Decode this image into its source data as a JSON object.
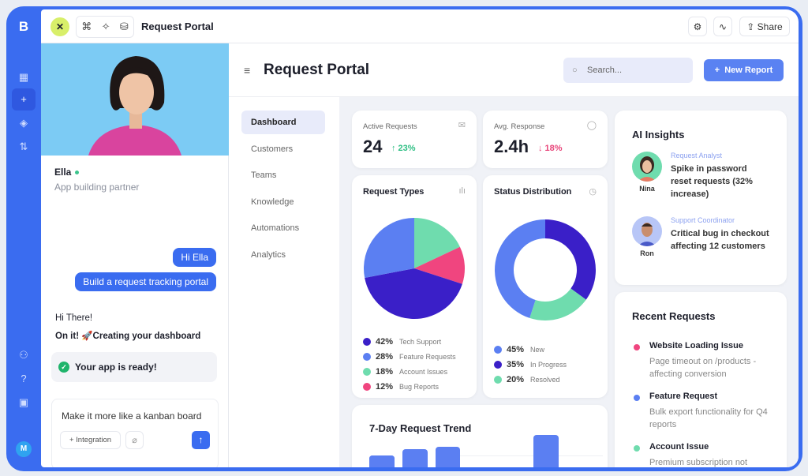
{
  "app": {
    "title": "Request Portal",
    "share_label": "Share",
    "user_initial": "M"
  },
  "chat": {
    "agent_name": "Ella",
    "agent_role": "App building partner",
    "user_messages": [
      "Hi Ella",
      "Build a request tracking portal"
    ],
    "agent_greeting": "Hi There!",
    "agent_status": "On it! 🚀Creating your dashboard",
    "ready": "Your app is ready!",
    "composer_value": "Make it more like a kanban board",
    "integration_label": "Integration"
  },
  "main": {
    "title": "Request Portal",
    "search_placeholder": "Search...",
    "new_report_label": "New Report",
    "nav": [
      "Dashboard",
      "Customers",
      "Teams",
      "Knowledge",
      "Automations",
      "Analytics"
    ],
    "nav_selected": "Dashboard"
  },
  "stats": [
    {
      "label": "Active Requests",
      "value": "24",
      "delta": "↑ 23%",
      "delta_color": "#2fbf84"
    },
    {
      "label": "Avg. Response",
      "value": "2.4h",
      "delta": "↓ 18%",
      "delta_color": "#e8457a"
    }
  ],
  "request_types": {
    "title": "Request Types",
    "legend": [
      {
        "pct": "42%",
        "label": "Tech Support",
        "value": 42,
        "color": "#3a1fc8"
      },
      {
        "pct": "28%",
        "label": "Feature Requests",
        "value": 28,
        "color": "#5b7ff2"
      },
      {
        "pct": "18%",
        "label": "Account Issues",
        "value": 18,
        "color": "#6fdcae"
      },
      {
        "pct": "12%",
        "label": "Bug Reports",
        "value": 12,
        "color": "#f0457f"
      }
    ]
  },
  "status_distribution": {
    "title": "Status Distribution",
    "legend": [
      {
        "pct": "45%",
        "label": "New",
        "value": 45,
        "color": "#5b7ff2"
      },
      {
        "pct": "35%",
        "label": "In Progress",
        "value": 35,
        "color": "#3a1fc8"
      },
      {
        "pct": "20%",
        "label": "Resolved",
        "value": 20,
        "color": "#6fdcae"
      }
    ]
  },
  "trend": {
    "title": "7-Day Request Trend",
    "bar_color": "#5b7ff2"
  },
  "ai_insights": {
    "title": "AI Insights",
    "items": [
      {
        "name": "Nina",
        "role": "Request Analyst",
        "text": "Spike in password reset requests (32% increase)"
      },
      {
        "name": "Ron",
        "role": "Support Coordinator",
        "text": "Critical bug in checkout affecting 12 customers"
      }
    ]
  },
  "recent_requests": {
    "title": "Recent Requests",
    "items": [
      {
        "title": "Website Loading Issue",
        "desc": "Page timeout on /products - affecting conversion",
        "color": "#f0457f"
      },
      {
        "title": "Feature Request",
        "desc": "Bulk export functionality for Q4 reports",
        "color": "#5b7ff2"
      },
      {
        "title": "Account Issue",
        "desc": "Premium subscription not",
        "color": "#6fdcae"
      }
    ]
  }
}
